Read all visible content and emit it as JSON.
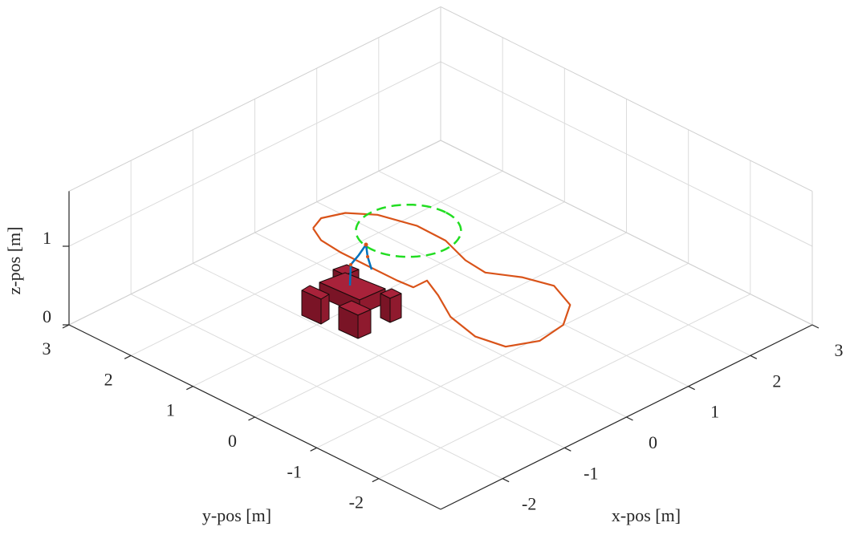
{
  "chart_data": {
    "type": "line3d",
    "x_label": "x-pos [m]",
    "y_label": "y-pos [m]",
    "z_label": "z-pos [m]",
    "xlim": [
      -3,
      3
    ],
    "ylim": [
      -3,
      3
    ],
    "zlim": [
      0,
      1.7
    ],
    "xticks": [
      -2,
      -1,
      0,
      1,
      2,
      3
    ],
    "yticks": [
      -2,
      -1,
      0,
      1,
      2,
      3
    ],
    "zticks": [
      0,
      1
    ],
    "grid": true,
    "series": [
      {
        "color": "#d95319",
        "x": [
          0.54,
          0.77,
          1.05,
          1.28,
          1.42,
          1.41,
          1.25,
          1.21,
          1.43,
          1.55,
          1.37,
          0.99,
          0.54,
          0.17,
          0.09,
          0.21,
          0.46,
          0.61,
          0.39,
          0.37,
          0.37,
          0.37,
          0.41,
          0.54
        ],
        "y": [
          2.6,
          2.7,
          2.59,
          2.3,
          1.8,
          1.33,
          0.85,
          0.49,
          0.12,
          -0.28,
          -0.72,
          -0.99,
          -1.06,
          -0.88,
          -0.47,
          0.05,
          0.5,
          0.83,
          0.83,
          1.07,
          1.52,
          1.98,
          2.34,
          2.6
        ],
        "z": [
          0,
          0,
          0,
          0,
          0,
          0,
          0,
          0,
          0,
          0,
          0,
          0,
          0,
          0,
          0,
          0,
          0,
          0,
          0,
          0,
          0,
          0,
          0,
          0
        ]
      }
    ],
    "circle": {
      "color": "#22dd22",
      "center_x": 1.27,
      "center_y": 1.79,
      "z": 0,
      "radius": 0.6,
      "dashed": true
    }
  }
}
